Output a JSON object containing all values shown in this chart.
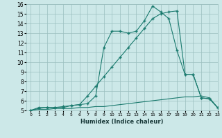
{
  "xlabel": "Humidex (Indice chaleur)",
  "ylabel": "",
  "bg_color": "#cce8e8",
  "line_color": "#1a7a6e",
  "xlim": [
    -0.5,
    23
  ],
  "ylim": [
    5,
    16
  ],
  "xticks": [
    0,
    1,
    2,
    3,
    4,
    5,
    6,
    7,
    8,
    9,
    10,
    11,
    12,
    13,
    14,
    15,
    16,
    17,
    18,
    19,
    20,
    21,
    22,
    23
  ],
  "yticks": [
    5,
    6,
    7,
    8,
    9,
    10,
    11,
    12,
    13,
    14,
    15,
    16
  ],
  "line1_x": [
    0,
    1,
    2,
    3,
    4,
    5,
    6,
    7,
    8,
    9,
    10,
    11,
    12,
    13,
    14,
    15,
    16,
    17,
    18,
    19,
    20,
    21,
    22,
    23
  ],
  "line1_y": [
    5.0,
    5.3,
    5.3,
    5.3,
    5.3,
    5.5,
    5.6,
    5.7,
    6.5,
    11.5,
    13.2,
    13.2,
    13.0,
    13.2,
    14.3,
    15.8,
    15.2,
    14.5,
    11.2,
    8.7,
    8.7,
    6.3,
    6.2,
    5.3
  ],
  "line2_x": [
    0,
    1,
    2,
    3,
    4,
    5,
    6,
    7,
    8,
    9,
    10,
    11,
    12,
    13,
    14,
    15,
    16,
    17,
    18,
    19,
    20,
    21,
    22,
    23
  ],
  "line2_y": [
    5.0,
    5.2,
    5.3,
    5.3,
    5.4,
    5.5,
    5.6,
    6.5,
    7.5,
    8.5,
    9.5,
    10.5,
    11.5,
    12.5,
    13.5,
    14.5,
    15.0,
    15.2,
    15.3,
    8.7,
    8.7,
    6.3,
    6.2,
    5.3
  ],
  "line3_x": [
    0,
    1,
    2,
    3,
    4,
    5,
    6,
    7,
    8,
    9,
    10,
    11,
    12,
    13,
    14,
    15,
    16,
    17,
    18,
    19,
    20,
    21,
    22,
    23
  ],
  "line3_y": [
    5.0,
    5.1,
    5.1,
    5.2,
    5.2,
    5.2,
    5.3,
    5.3,
    5.4,
    5.4,
    5.5,
    5.6,
    5.7,
    5.8,
    5.9,
    6.0,
    6.1,
    6.2,
    6.3,
    6.4,
    6.4,
    6.5,
    6.3,
    5.3
  ],
  "grid_color": "#9bbfbf",
  "marker": "+"
}
